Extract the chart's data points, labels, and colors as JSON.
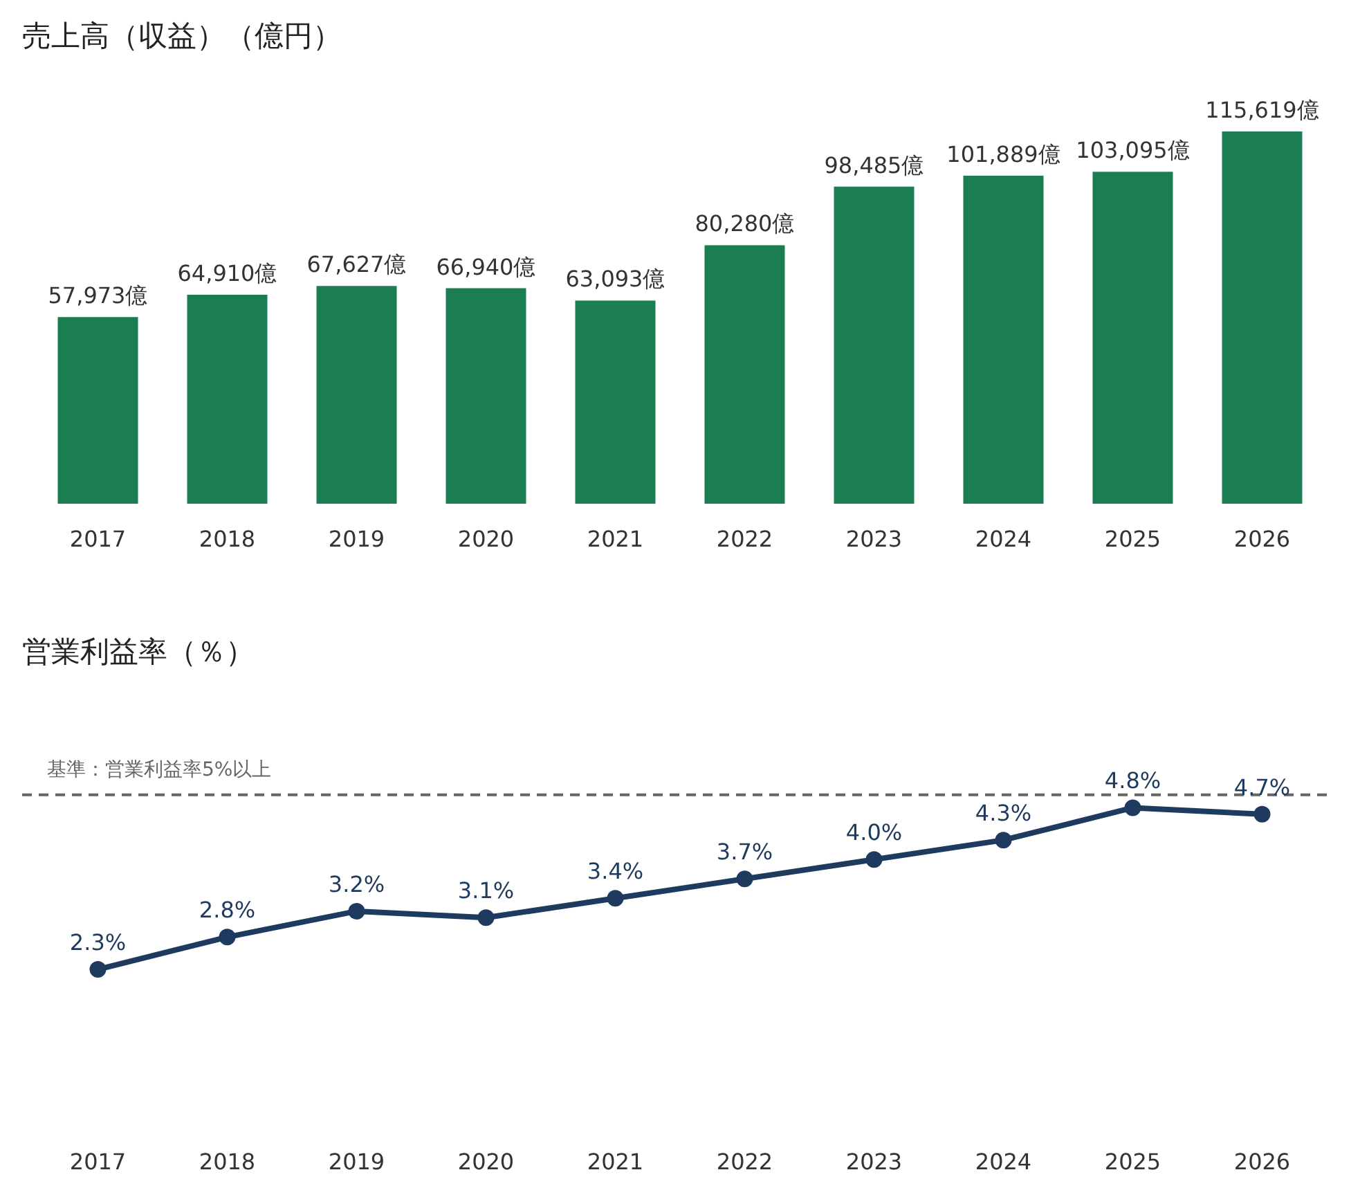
{
  "chart_data": [
    {
      "type": "bar",
      "title": "売上高（収益）（億円）",
      "categories": [
        "2017",
        "2018",
        "2019",
        "2020",
        "2021",
        "2022",
        "2023",
        "2024",
        "2025",
        "2026"
      ],
      "values": [
        57973,
        64910,
        67627,
        66940,
        63093,
        80280,
        98485,
        101889,
        103095,
        115619
      ],
      "color": "#1b7d52",
      "value_labels": [
        "57,973億",
        "64,910億",
        "67,627億",
        "66,940億",
        "63,093億",
        "80,280億",
        "98,485億",
        "101,889億",
        "103,095億",
        "115,619億"
      ],
      "tick_labels": "x"
    },
    {
      "type": "line",
      "title": "営業利益率（％）",
      "categories": [
        "2017",
        "2018",
        "2019",
        "2020",
        "2021",
        "2022",
        "2023",
        "2024",
        "2025",
        "2026"
      ],
      "series": [
        {
          "color": "#1f3a5f",
          "values": [
            2.3,
            2.8,
            3.2,
            3.1,
            3.4,
            3.7,
            4.0,
            4.3,
            4.8,
            4.7
          ],
          "value_labels": [
            "2.3%",
            "2.8%",
            "3.2%",
            "3.1%",
            "3.4%",
            "3.7%",
            "4.0%",
            "4.3%",
            "4.8%",
            "4.7%"
          ]
        }
      ],
      "tick_labels": "x",
      "marker": "circle",
      "line_style": "solid",
      "ref_lines": [
        {
          "axis": "y",
          "value": 5,
          "label": "基準：営業利益率5%以上",
          "color": "#666666",
          "line_style": "dashed"
        }
      ]
    }
  ]
}
